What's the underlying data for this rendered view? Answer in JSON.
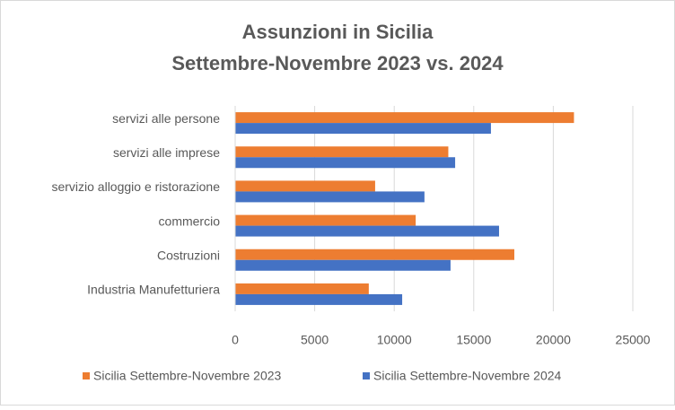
{
  "chart_data": {
    "type": "hbar",
    "title": "Assunzioni in Sicilia",
    "subtitle": "Settembre-Novembre 2023 vs. 2024",
    "categories": [
      "servizi alle persone",
      "servizi alle imprese",
      "servizio alloggio e ristorazione",
      "commercio",
      "Costruzioni",
      "Industria Manufetturiera"
    ],
    "series": [
      {
        "name": "Sicilia Settembre-Novembre 2023",
        "color": "#ed7d31",
        "values": [
          21300,
          13400,
          8800,
          11350,
          17550,
          8400
        ]
      },
      {
        "name": "Sicilia Settembre-Novembre 2024",
        "color": "#4472c4",
        "values": [
          16080,
          13830,
          11900,
          16590,
          13540,
          10500
        ]
      }
    ],
    "xlim": [
      0,
      25000
    ],
    "xticks": [
      0,
      5000,
      10000,
      15000,
      20000,
      25000
    ],
    "grid": true,
    "legend": "bottom"
  }
}
